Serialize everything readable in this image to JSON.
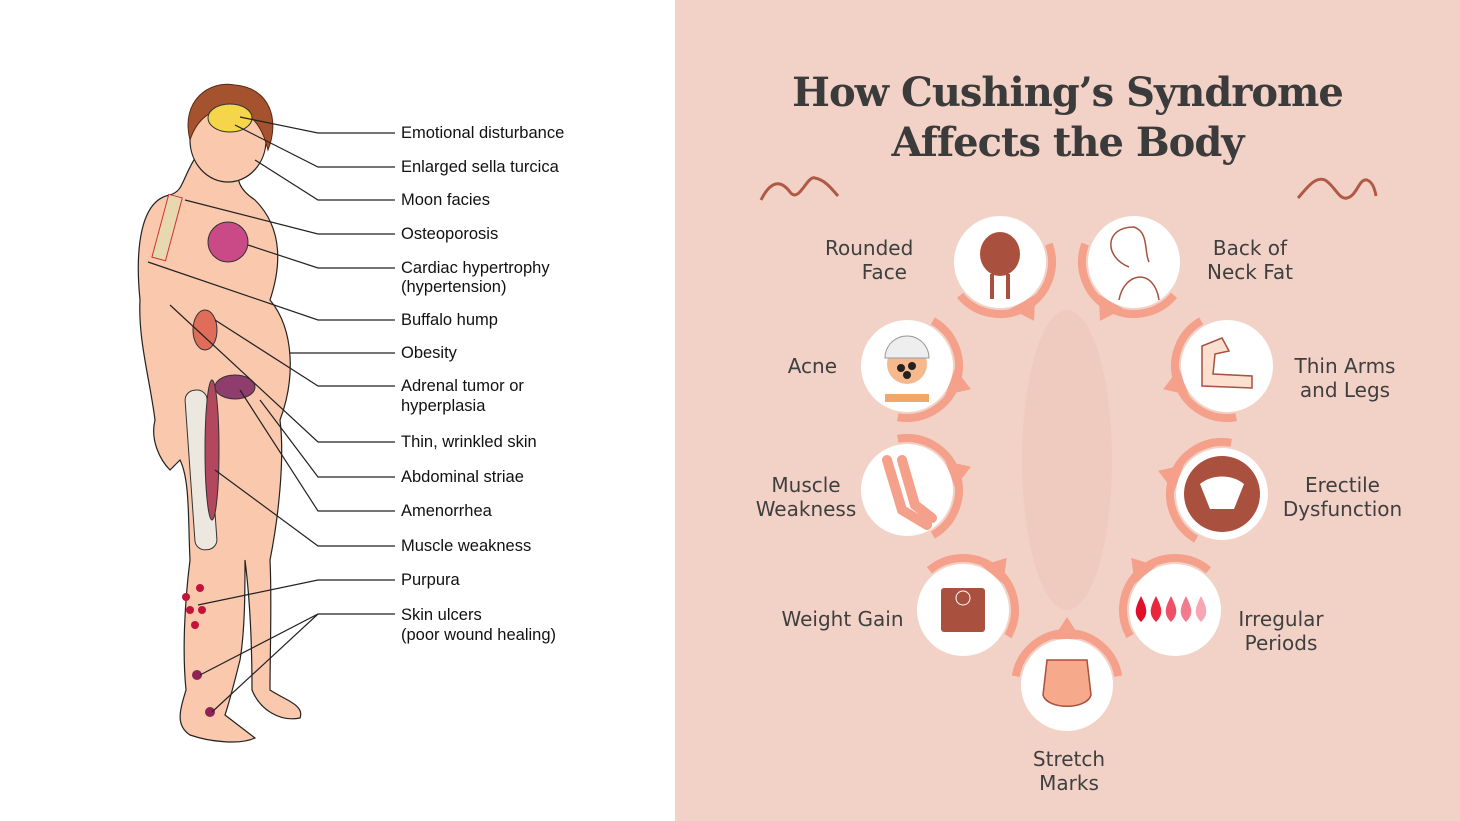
{
  "left_diagram": {
    "labels": [
      {
        "text": "Emotional disturbance"
      },
      {
        "text": "Enlarged sella turcica"
      },
      {
        "text": "Moon facies"
      },
      {
        "text": "Osteoporosis"
      },
      {
        "text": "Cardiac hypertrophy",
        "sub": "(hypertension)"
      },
      {
        "text": "Buffalo hump"
      },
      {
        "text": "Obesity"
      },
      {
        "text": "Adrenal tumor or",
        "sub": "hyperplasia"
      },
      {
        "text": "Thin, wrinkled skin"
      },
      {
        "text": "Abdominal striae"
      },
      {
        "text": "Amenorrhea"
      },
      {
        "text": "Muscle weakness"
      },
      {
        "text": "Purpura"
      },
      {
        "text": "Skin ulcers",
        "sub": "(poor wound healing)"
      }
    ]
  },
  "infographic": {
    "title_line1": "How Cushing’s Syndrome",
    "title_line2": "Affects the Body",
    "accent_color": "#f4a08a",
    "icon_color": "#a9503e",
    "background_color": "#f2d2c7",
    "symptoms": [
      {
        "l1": "Rounded",
        "l2": "Face",
        "icon": "round-face-icon"
      },
      {
        "l1": "Back of",
        "l2": "Neck Fat",
        "icon": "neck-profile-icon"
      },
      {
        "l1": "Acne",
        "l2": "",
        "icon": "acne-face-icon"
      },
      {
        "l1": "Thin Arms",
        "l2": "and Legs",
        "icon": "arm-muscle-icon"
      },
      {
        "l1": "Muscle",
        "l2": "Weakness",
        "icon": "legs-icon"
      },
      {
        "l1": "Erectile",
        "l2": "Dysfunction",
        "icon": "pelvis-icon"
      },
      {
        "l1": "Weight Gain",
        "l2": "",
        "icon": "scale-icon"
      },
      {
        "l1": "Irregular",
        "l2": "Periods",
        "icon": "blood-drops-icon"
      },
      {
        "l1": "Stretch",
        "l2": "Marks",
        "icon": "hips-icon"
      }
    ]
  }
}
